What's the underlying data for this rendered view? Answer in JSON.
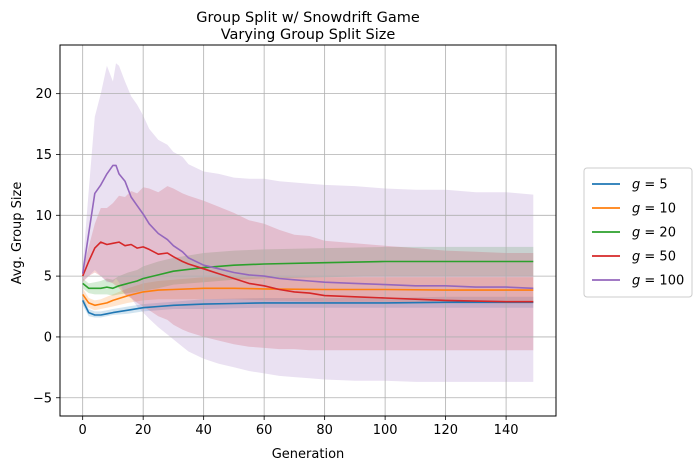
{
  "chart_data": {
    "type": "line",
    "title": "Group Split w/ Snowdrift Game",
    "subtitle": "Varying Group Split Size",
    "xlabel": "Generation",
    "ylabel": "Avg. Group Size",
    "xlim": [
      -7.5,
      156.5
    ],
    "ylim": [
      -6.5,
      24
    ],
    "xticks": [
      0,
      20,
      40,
      60,
      80,
      100,
      120,
      140
    ],
    "yticks": [
      -5,
      0,
      5,
      10,
      15,
      20
    ],
    "grid": true,
    "legend_position": "outside-right",
    "series": [
      {
        "name": "g = 5",
        "legend_var": "g",
        "legend_eq": " = 5",
        "color": "#1f77b4",
        "x": [
          0,
          2,
          4,
          6,
          8,
          10,
          15,
          20,
          25,
          30,
          40,
          50,
          60,
          80,
          100,
          120,
          140,
          149
        ],
        "mean": [
          3.0,
          2.0,
          1.8,
          1.8,
          1.9,
          2.0,
          2.2,
          2.4,
          2.5,
          2.6,
          2.7,
          2.75,
          2.8,
          2.8,
          2.8,
          2.85,
          2.85,
          2.85
        ],
        "lower": [
          2.6,
          1.7,
          1.6,
          1.6,
          1.7,
          1.8,
          1.9,
          2.1,
          2.2,
          2.3,
          2.3,
          2.35,
          2.4,
          2.4,
          2.4,
          2.4,
          2.4,
          2.4
        ],
        "upper": [
          3.4,
          2.3,
          2.1,
          2.1,
          2.2,
          2.3,
          2.5,
          2.7,
          2.8,
          2.9,
          3.1,
          3.15,
          3.2,
          3.2,
          3.2,
          3.3,
          3.3,
          3.3
        ]
      },
      {
        "name": "g = 10",
        "legend_var": "g",
        "legend_eq": " = 10",
        "color": "#ff7f0e",
        "x": [
          0,
          2,
          4,
          6,
          8,
          10,
          15,
          20,
          25,
          30,
          40,
          50,
          60,
          80,
          100,
          120,
          140,
          149
        ],
        "mean": [
          3.5,
          2.8,
          2.6,
          2.7,
          2.8,
          3.0,
          3.4,
          3.7,
          3.85,
          3.9,
          4.0,
          4.0,
          3.95,
          3.9,
          3.9,
          3.85,
          3.85,
          3.85
        ],
        "lower": [
          3.0,
          2.4,
          2.2,
          2.3,
          2.4,
          2.5,
          2.8,
          3.0,
          3.1,
          3.1,
          3.1,
          3.1,
          3.0,
          2.9,
          2.9,
          2.8,
          2.8,
          2.8
        ],
        "upper": [
          4.0,
          3.2,
          3.0,
          3.1,
          3.3,
          3.5,
          4.0,
          4.4,
          4.6,
          4.7,
          4.9,
          4.9,
          4.9,
          4.9,
          4.9,
          4.9,
          4.9,
          4.9
        ]
      },
      {
        "name": "g = 20",
        "legend_var": "g",
        "legend_eq": " = 20",
        "color": "#2ca02c",
        "x": [
          0,
          2,
          4,
          6,
          8,
          10,
          12,
          15,
          18,
          20,
          25,
          30,
          40,
          50,
          60,
          80,
          100,
          120,
          140,
          149
        ],
        "mean": [
          4.4,
          4.0,
          4.0,
          4.0,
          4.1,
          4.0,
          4.2,
          4.4,
          4.6,
          4.8,
          5.1,
          5.4,
          5.7,
          5.9,
          6.0,
          6.1,
          6.2,
          6.2,
          6.2,
          6.2
        ],
        "lower": [
          4.0,
          3.6,
          3.5,
          3.5,
          3.5,
          3.4,
          3.5,
          3.6,
          3.7,
          3.8,
          4.0,
          4.3,
          4.5,
          4.7,
          4.8,
          4.9,
          5.0,
          5.0,
          5.0,
          5.0
        ],
        "upper": [
          4.8,
          4.4,
          4.5,
          4.6,
          4.8,
          4.7,
          5.0,
          5.3,
          5.5,
          5.8,
          6.2,
          6.5,
          6.9,
          7.1,
          7.2,
          7.3,
          7.4,
          7.4,
          7.4,
          7.4
        ]
      },
      {
        "name": "g = 50",
        "legend_var": "g",
        "legend_eq": " = 50",
        "color": "#d62728",
        "x": [
          0,
          2,
          4,
          6,
          8,
          10,
          12,
          14,
          16,
          18,
          20,
          22,
          25,
          28,
          30,
          33,
          35,
          40,
          45,
          50,
          55,
          60,
          65,
          70,
          75,
          80,
          90,
          100,
          110,
          120,
          130,
          140,
          149
        ],
        "mean": [
          5.0,
          6.2,
          7.3,
          7.8,
          7.6,
          7.7,
          7.8,
          7.5,
          7.6,
          7.3,
          7.4,
          7.2,
          6.8,
          6.9,
          6.6,
          6.2,
          6.0,
          5.6,
          5.2,
          4.8,
          4.4,
          4.2,
          3.9,
          3.7,
          3.6,
          3.4,
          3.3,
          3.2,
          3.1,
          3.0,
          2.95,
          2.9,
          2.9
        ],
        "lower": [
          4.5,
          5.0,
          5.3,
          5.0,
          4.6,
          4.4,
          4.0,
          3.5,
          3.2,
          2.8,
          2.5,
          2.2,
          1.7,
          1.4,
          1.0,
          0.6,
          0.4,
          0.0,
          -0.3,
          -0.6,
          -0.8,
          -0.9,
          -1.0,
          -1.0,
          -1.1,
          -1.1,
          -1.1,
          -1.1,
          -1.1,
          -1.1,
          -1.1,
          -1.1,
          -1.1
        ],
        "upper": [
          5.5,
          7.4,
          9.3,
          10.6,
          10.6,
          11.0,
          11.6,
          11.5,
          12.0,
          11.8,
          12.3,
          12.2,
          11.9,
          12.4,
          12.2,
          11.8,
          11.6,
          11.2,
          10.7,
          10.2,
          9.6,
          9.3,
          8.8,
          8.4,
          8.3,
          7.9,
          7.7,
          7.5,
          7.3,
          7.1,
          7.0,
          6.9,
          6.9
        ]
      },
      {
        "name": "g = 100",
        "legend_var": "g",
        "legend_eq": " = 100",
        "color": "#9467bd",
        "x": [
          0,
          2,
          4,
          6,
          8,
          10,
          11,
          12,
          14,
          16,
          18,
          20,
          22,
          25,
          28,
          30,
          33,
          35,
          40,
          45,
          50,
          55,
          60,
          65,
          70,
          75,
          80,
          90,
          100,
          110,
          120,
          130,
          140,
          149
        ],
        "mean": [
          5.2,
          8.5,
          11.8,
          12.5,
          13.4,
          14.1,
          14.1,
          13.4,
          12.8,
          11.5,
          10.8,
          10.1,
          9.3,
          8.5,
          8.0,
          7.5,
          7.0,
          6.5,
          5.9,
          5.6,
          5.3,
          5.1,
          5.0,
          4.8,
          4.7,
          4.6,
          4.5,
          4.4,
          4.3,
          4.2,
          4.2,
          4.1,
          4.1,
          4.0
        ],
        "lower": [
          4.6,
          5.0,
          5.5,
          5.0,
          4.5,
          4.5,
          4.8,
          4.5,
          3.5,
          3.2,
          2.5,
          2.0,
          1.5,
          0.8,
          0.2,
          -0.2,
          -0.8,
          -1.2,
          -1.8,
          -2.2,
          -2.5,
          -2.8,
          -3.0,
          -3.2,
          -3.3,
          -3.4,
          -3.5,
          -3.6,
          -3.6,
          -3.7,
          -3.7,
          -3.7,
          -3.7,
          -3.7
        ],
        "upper": [
          5.8,
          12.0,
          18.1,
          20.0,
          22.3,
          21.0,
          22.5,
          22.3,
          21.0,
          19.8,
          19.1,
          18.2,
          17.1,
          16.2,
          15.8,
          15.2,
          14.8,
          14.2,
          13.6,
          13.4,
          13.1,
          13.0,
          13.0,
          12.8,
          12.7,
          12.6,
          12.5,
          12.4,
          12.2,
          12.1,
          12.1,
          11.9,
          11.9,
          11.7
        ]
      }
    ]
  }
}
